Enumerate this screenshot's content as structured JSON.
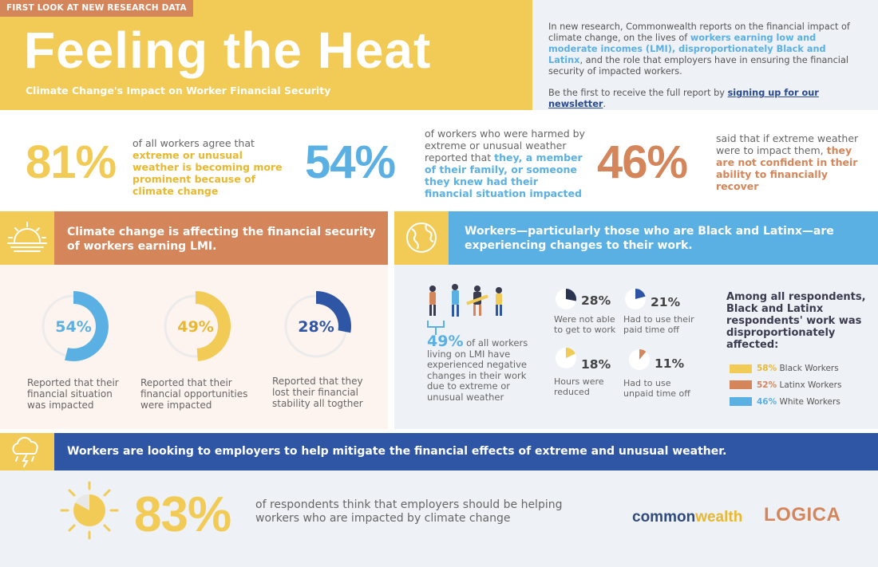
{
  "colors": {
    "yellow": "#f1cb55",
    "orange": "#d5855a",
    "blue": "#5ab0e2",
    "navy": "#2f56a4",
    "light_bg": "#eef1f6",
    "peach_bg": "#fdf3ef"
  },
  "header": {
    "tag": "FIRST LOOK AT NEW RESEARCH DATA",
    "title": "Feeling the Heat",
    "subtitle": "Climate Change's Impact on Worker Financial Security"
  },
  "intro": {
    "p1_a": "In new research, Commonwealth reports on the financial impact of climate change, on the lives of ",
    "p1_hl": "workers earning low and moderate incomes (LMI), disproportionately Black and Latinx",
    "p1_b": ", and the role that employers have in ensuring the financial security of impacted workers.",
    "p2_a": "Be the first to receive the full report by ",
    "p2_link": "signing up for our newsletter",
    "p2_b": "."
  },
  "stats": [
    {
      "pct": "81%",
      "text_a": "of all workers agree that ",
      "text_hl": "extreme or unusual weather is becoming more prominent because of climate change",
      "text_b": ""
    },
    {
      "pct": "54%",
      "text_a": "of workers who were harmed by extreme or unusual weather reported that ",
      "text_hl": "they, a member of their family, or someone they knew had their financial situation impacted",
      "text_b": ""
    },
    {
      "pct": "46%",
      "text_a": "said that if extreme weather were to impact them, ",
      "text_hl": "they are not confident in their ability to financially recover",
      "text_b": ""
    }
  ],
  "section1": {
    "heading": "Climate change is affecting the financial security of workers earning LMI.",
    "icon": "sunrise-icon",
    "donuts": [
      {
        "pct": "54%",
        "value": 54,
        "caption": "Reported that their financial situation was impacted"
      },
      {
        "pct": "49%",
        "value": 49,
        "caption": "Reported that their financial opportunities were impacted"
      },
      {
        "pct": "28%",
        "value": 28,
        "caption": "Reported that they lost their financial stability all togther"
      }
    ]
  },
  "section2": {
    "heading": "Workers—particularly those who are Black and Latinx—are experiencing changes to their work.",
    "icon": "globe-icon",
    "main_pct": "49%",
    "main_text": " of all workers living on LMI have experienced negative changes in their work due to extreme or unusual  weather",
    "pies": [
      {
        "pct": "28%",
        "value": 28,
        "caption": "Were not able to get to work"
      },
      {
        "pct": "21%",
        "value": 21,
        "caption": "Had to use their paid time off"
      },
      {
        "pct": "18%",
        "value": 18,
        "caption": "Hours were reduced"
      },
      {
        "pct": "11%",
        "value": 11,
        "caption": "Had to use unpaid time off"
      }
    ],
    "legend_title": "Among all respondents, Black and Latinx respondents' work was disproportionately affected:",
    "legend": [
      {
        "pct": "58%",
        "label": " Black Workers",
        "color": "#f1cb55"
      },
      {
        "pct": "52%",
        "label": " Latinx Workers",
        "color": "#d5855a"
      },
      {
        "pct": "46%",
        "label": " White Workers",
        "color": "#5ab0e2"
      }
    ]
  },
  "section3": {
    "heading": "Workers are looking to employers to help mitigate the financial effects of extreme and unusual weather.",
    "icon": "storm-icon",
    "pct": "83%",
    "value": 83,
    "text": "of respondents think that employers should be helping workers who are impacted by climate change"
  },
  "logos": {
    "commonwealth_a": "common",
    "commonwealth_b": "wealth",
    "logica": "LOGICA"
  }
}
